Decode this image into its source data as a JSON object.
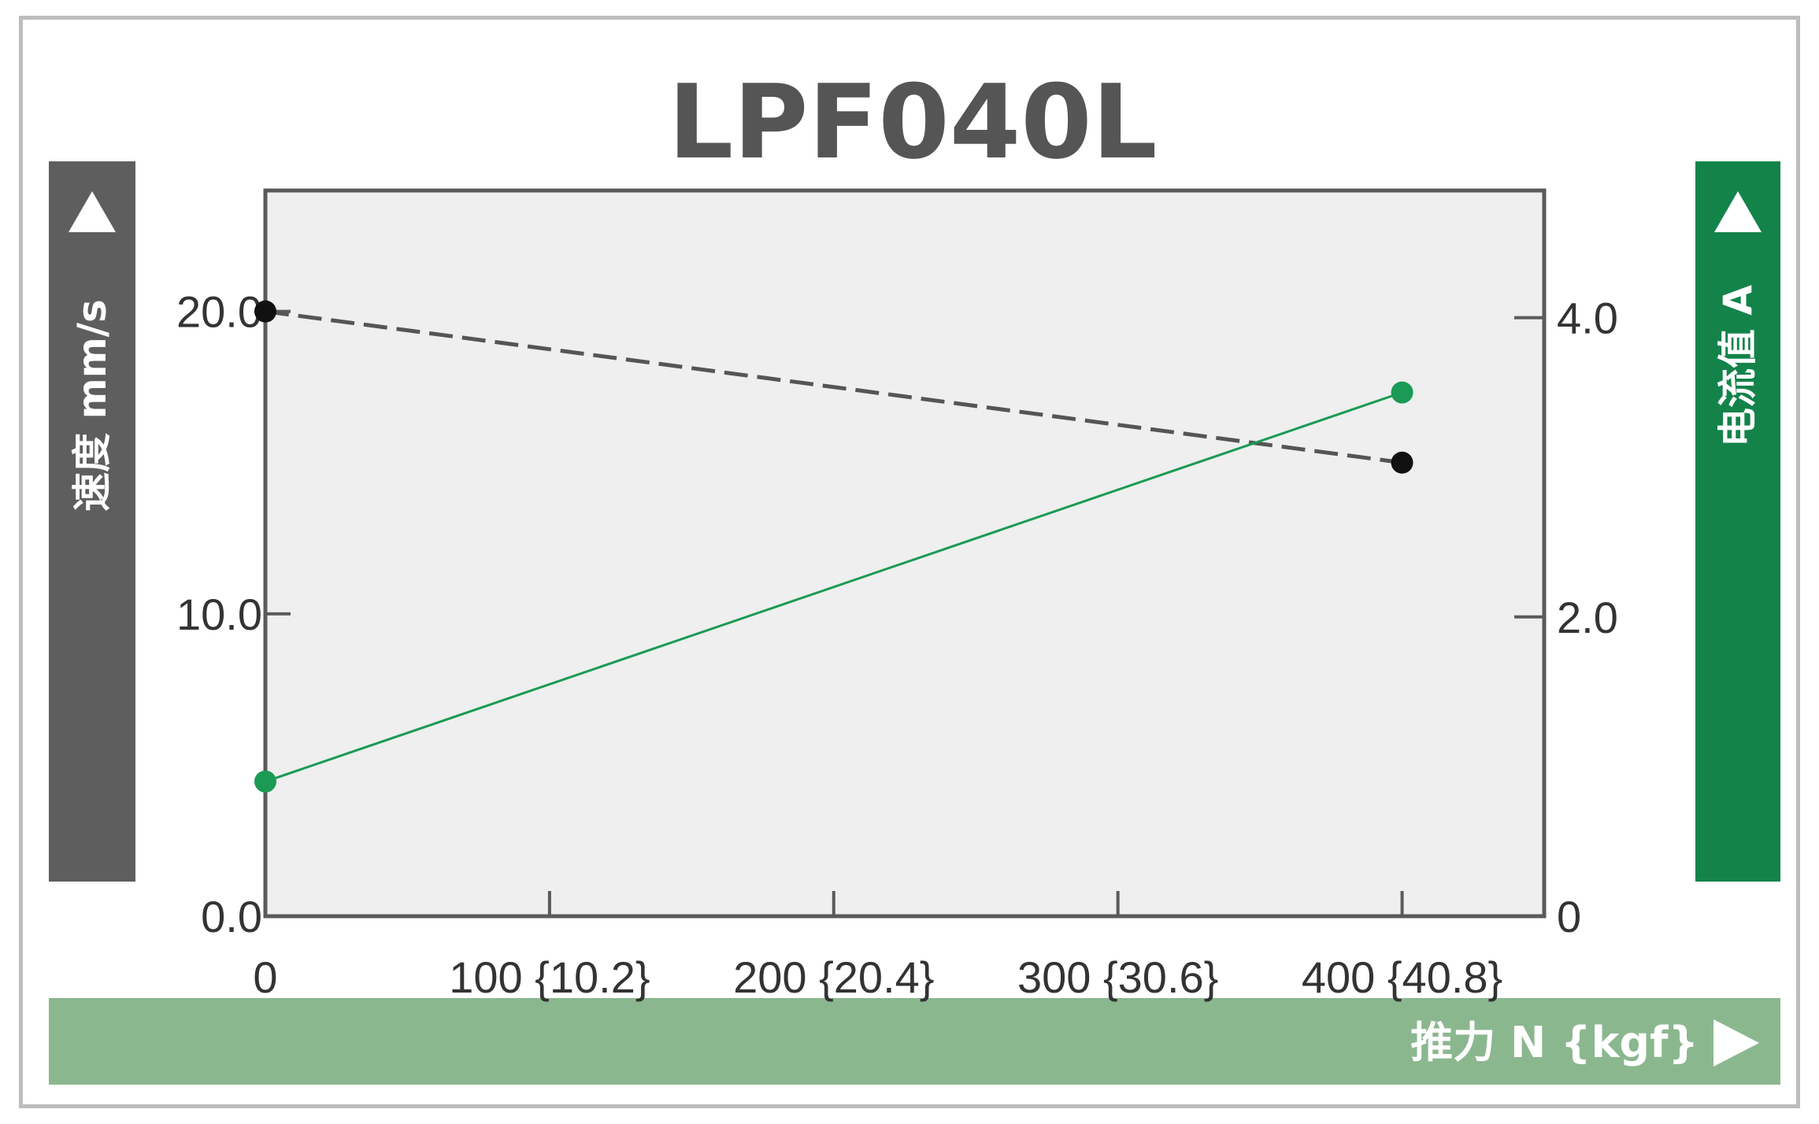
{
  "chart_data": {
    "type": "line",
    "title": "LPF040L",
    "xlabel": "推力 N {kgf}",
    "ylabel_left": "速度 mm/s",
    "ylabel_right": "电流值 A",
    "x_ticks": [
      "0",
      "100 {10.2}",
      "200 {20.4}",
      "300 {30.6}",
      "400 {40.8}"
    ],
    "y_left_ticks": [
      "0.0",
      "10.0",
      "20.0"
    ],
    "y_right_ticks": [
      "0",
      "2.0",
      "4.0"
    ],
    "xlim": [
      0,
      450
    ],
    "ylim_left": [
      0,
      24
    ],
    "ylim_right": [
      0,
      4.85
    ],
    "grid": false,
    "series": [
      {
        "axis": "left",
        "color": "#555555",
        "style": "dashed",
        "x": [
          0,
          400
        ],
        "y": [
          20,
          15
        ]
      },
      {
        "axis": "right",
        "color": "#1a9a55",
        "style": "solid",
        "x": [
          0,
          400
        ],
        "y": [
          0.9,
          3.5
        ]
      }
    ]
  },
  "colors": {
    "plot_bg": "#eeefee",
    "left_band": "#5e5e5e",
    "right_band": "#13834a",
    "bottom_band": "#8bb78f"
  }
}
